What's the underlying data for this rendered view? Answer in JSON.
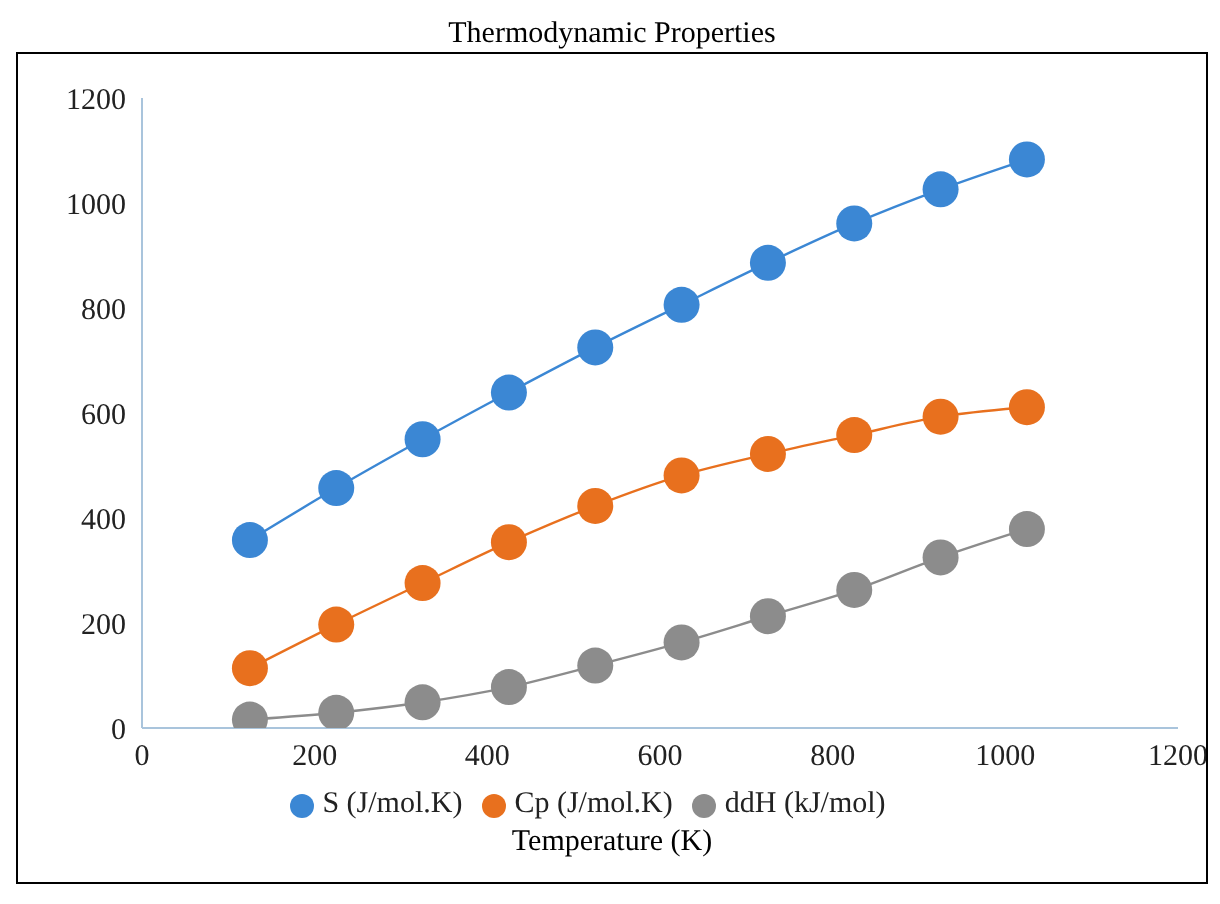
{
  "chart_data": {
    "type": "line",
    "title": "Thermodynamic Properties",
    "xlabel": "Temperature (K)",
    "x": [
      125,
      225,
      325,
      425,
      525,
      625,
      725,
      825,
      925,
      1025
    ],
    "series": [
      {
        "name": "S (J/mol.K)",
        "color": "#3b87d4",
        "values": [
          358,
          457,
          550,
          639,
          725,
          806,
          886,
          961,
          1026,
          1083
        ]
      },
      {
        "name": "Cp (J/mol.K)",
        "color": "#e8701e",
        "values": [
          114,
          197,
          276,
          354,
          423,
          481,
          522,
          558,
          593,
          611
        ]
      },
      {
        "name": "ddH (kJ/mol)",
        "color": "#8c8c8c",
        "values": [
          16,
          29,
          49,
          78,
          119,
          163,
          213,
          263,
          325,
          379
        ]
      }
    ],
    "xlim": [
      0,
      1200
    ],
    "xticks": [
      0,
      200,
      400,
      600,
      800,
      1000,
      1200
    ],
    "ylim": [
      0,
      1200
    ],
    "yticks": [
      0,
      200,
      400,
      600,
      800,
      1000,
      1200
    ],
    "grid": false,
    "legend": "bottom",
    "marker": "circle",
    "line_style": "solid"
  }
}
